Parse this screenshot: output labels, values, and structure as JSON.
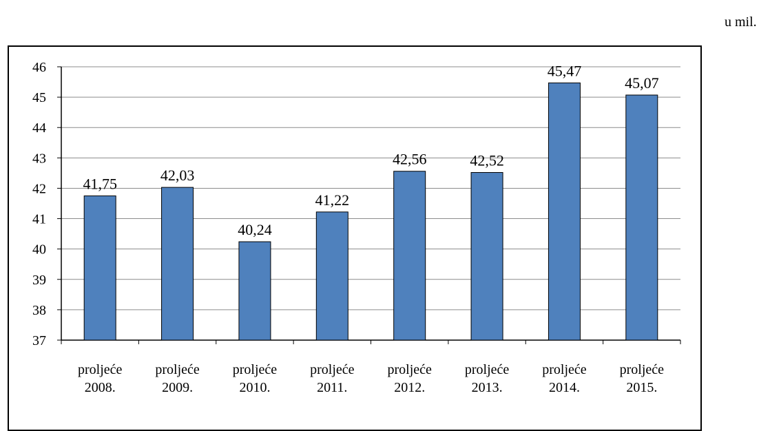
{
  "unit_note": "u mil.",
  "chart_data": {
    "type": "bar",
    "categories": [
      [
        "proljeće",
        "2008."
      ],
      [
        "proljeće",
        "2009."
      ],
      [
        "proljeće",
        "2010."
      ],
      [
        "proljeće",
        "2011."
      ],
      [
        "proljeće",
        "2012."
      ],
      [
        "proljeće",
        "2013."
      ],
      [
        "proljeće",
        "2014."
      ],
      [
        "proljeće",
        "2015."
      ]
    ],
    "values": [
      41.75,
      42.03,
      40.24,
      41.22,
      42.56,
      42.52,
      45.47,
      45.07
    ],
    "value_labels": [
      "41,75",
      "42,03",
      "40,24",
      "41,22",
      "42,56",
      "42,52",
      "45,47",
      "45,07"
    ],
    "ylim": [
      37,
      46
    ],
    "yticks": [
      "37",
      "38",
      "39",
      "40",
      "41",
      "42",
      "43",
      "44",
      "45",
      "46"
    ],
    "grid": true,
    "bar_color": "#4F81BD",
    "title": "",
    "xlabel": "",
    "ylabel": ""
  }
}
